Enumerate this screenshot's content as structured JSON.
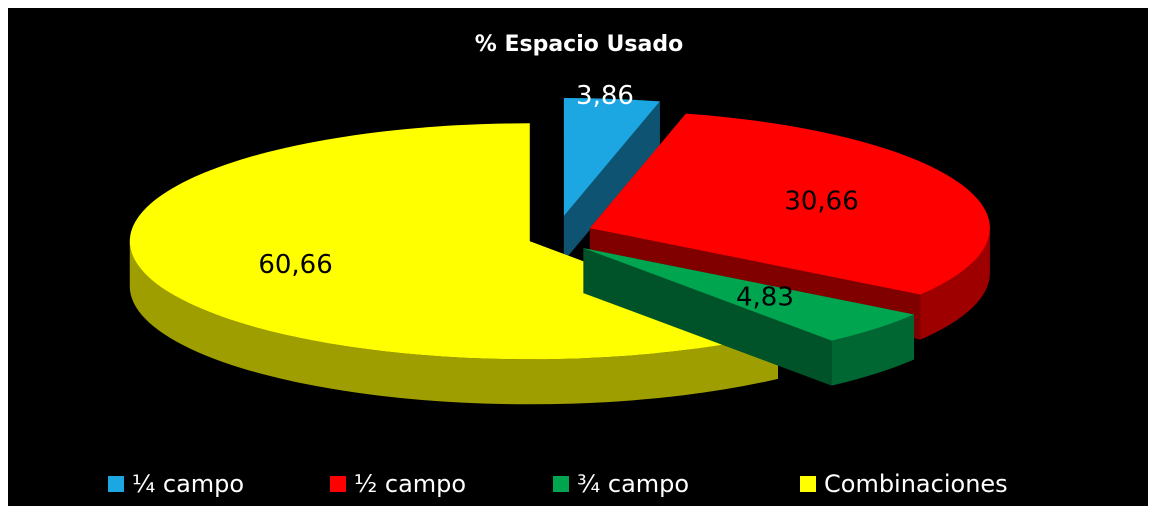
{
  "chart_data": {
    "type": "pie3d",
    "title": "% Espacio  Usado",
    "categories": [
      "¼ campo",
      "½ campo",
      "¾ campo",
      "Combinaciones"
    ],
    "values": [
      3.86,
      30.66,
      4.83,
      60.66
    ],
    "value_labels": [
      "3,86",
      "30,66",
      "4,83",
      "60,66"
    ],
    "colors": [
      "#1ca6e2",
      "#ff0000",
      "#00a550",
      "#ffff00"
    ],
    "legend": "bottom"
  }
}
